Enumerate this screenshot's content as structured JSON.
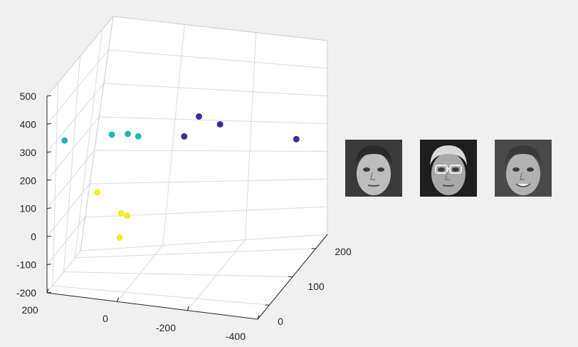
{
  "chart_data": {
    "type": "scatter",
    "subtype": "3d",
    "title": "",
    "xlabel": "",
    "ylabel": "",
    "zlabel": "",
    "grid": true,
    "xlim": [
      -400,
      200
    ],
    "ylim": [
      -50,
      250
    ],
    "zlim": [
      -200,
      500
    ],
    "x_tick_labels": [
      "200",
      "0",
      "-200",
      "-400"
    ],
    "y_tick_labels": [
      "0",
      "100",
      "200"
    ],
    "z_tick_labels": [
      "500",
      "400",
      "300",
      "200",
      "100",
      "0",
      "-100",
      "-200"
    ],
    "series": [
      {
        "color": "#3a2ea6",
        "points": [
          {
            "x": -380,
            "y": 150,
            "z": 240
          },
          {
            "x": -200,
            "y": 10,
            "z": 440
          },
          {
            "x": -200,
            "y": 120,
            "z": 320
          },
          {
            "x": -180,
            "y": -30,
            "z": 400
          }
        ]
      },
      {
        "color": "#1fb8ae",
        "points": [
          {
            "x": 40,
            "y": 10,
            "z": 350
          },
          {
            "x": 0,
            "y": 20,
            "z": 350
          },
          {
            "x": -20,
            "y": 40,
            "z": 330
          },
          {
            "x": 150,
            "y": -50,
            "z": 350
          }
        ]
      },
      {
        "color": "#f5ec1c",
        "points": [
          {
            "x": 80,
            "y": 10,
            "z": 140
          },
          {
            "x": 10,
            "y": 0,
            "z": 80
          },
          {
            "x": 10,
            "y": 40,
            "z": 45
          },
          {
            "x": 10,
            "y": -10,
            "z": 0
          }
        ]
      }
    ]
  },
  "faces": [
    {
      "icon": "face-portrait-young-man"
    },
    {
      "icon": "face-portrait-man-with-glasses"
    },
    {
      "icon": "face-portrait-smiling-man"
    }
  ]
}
